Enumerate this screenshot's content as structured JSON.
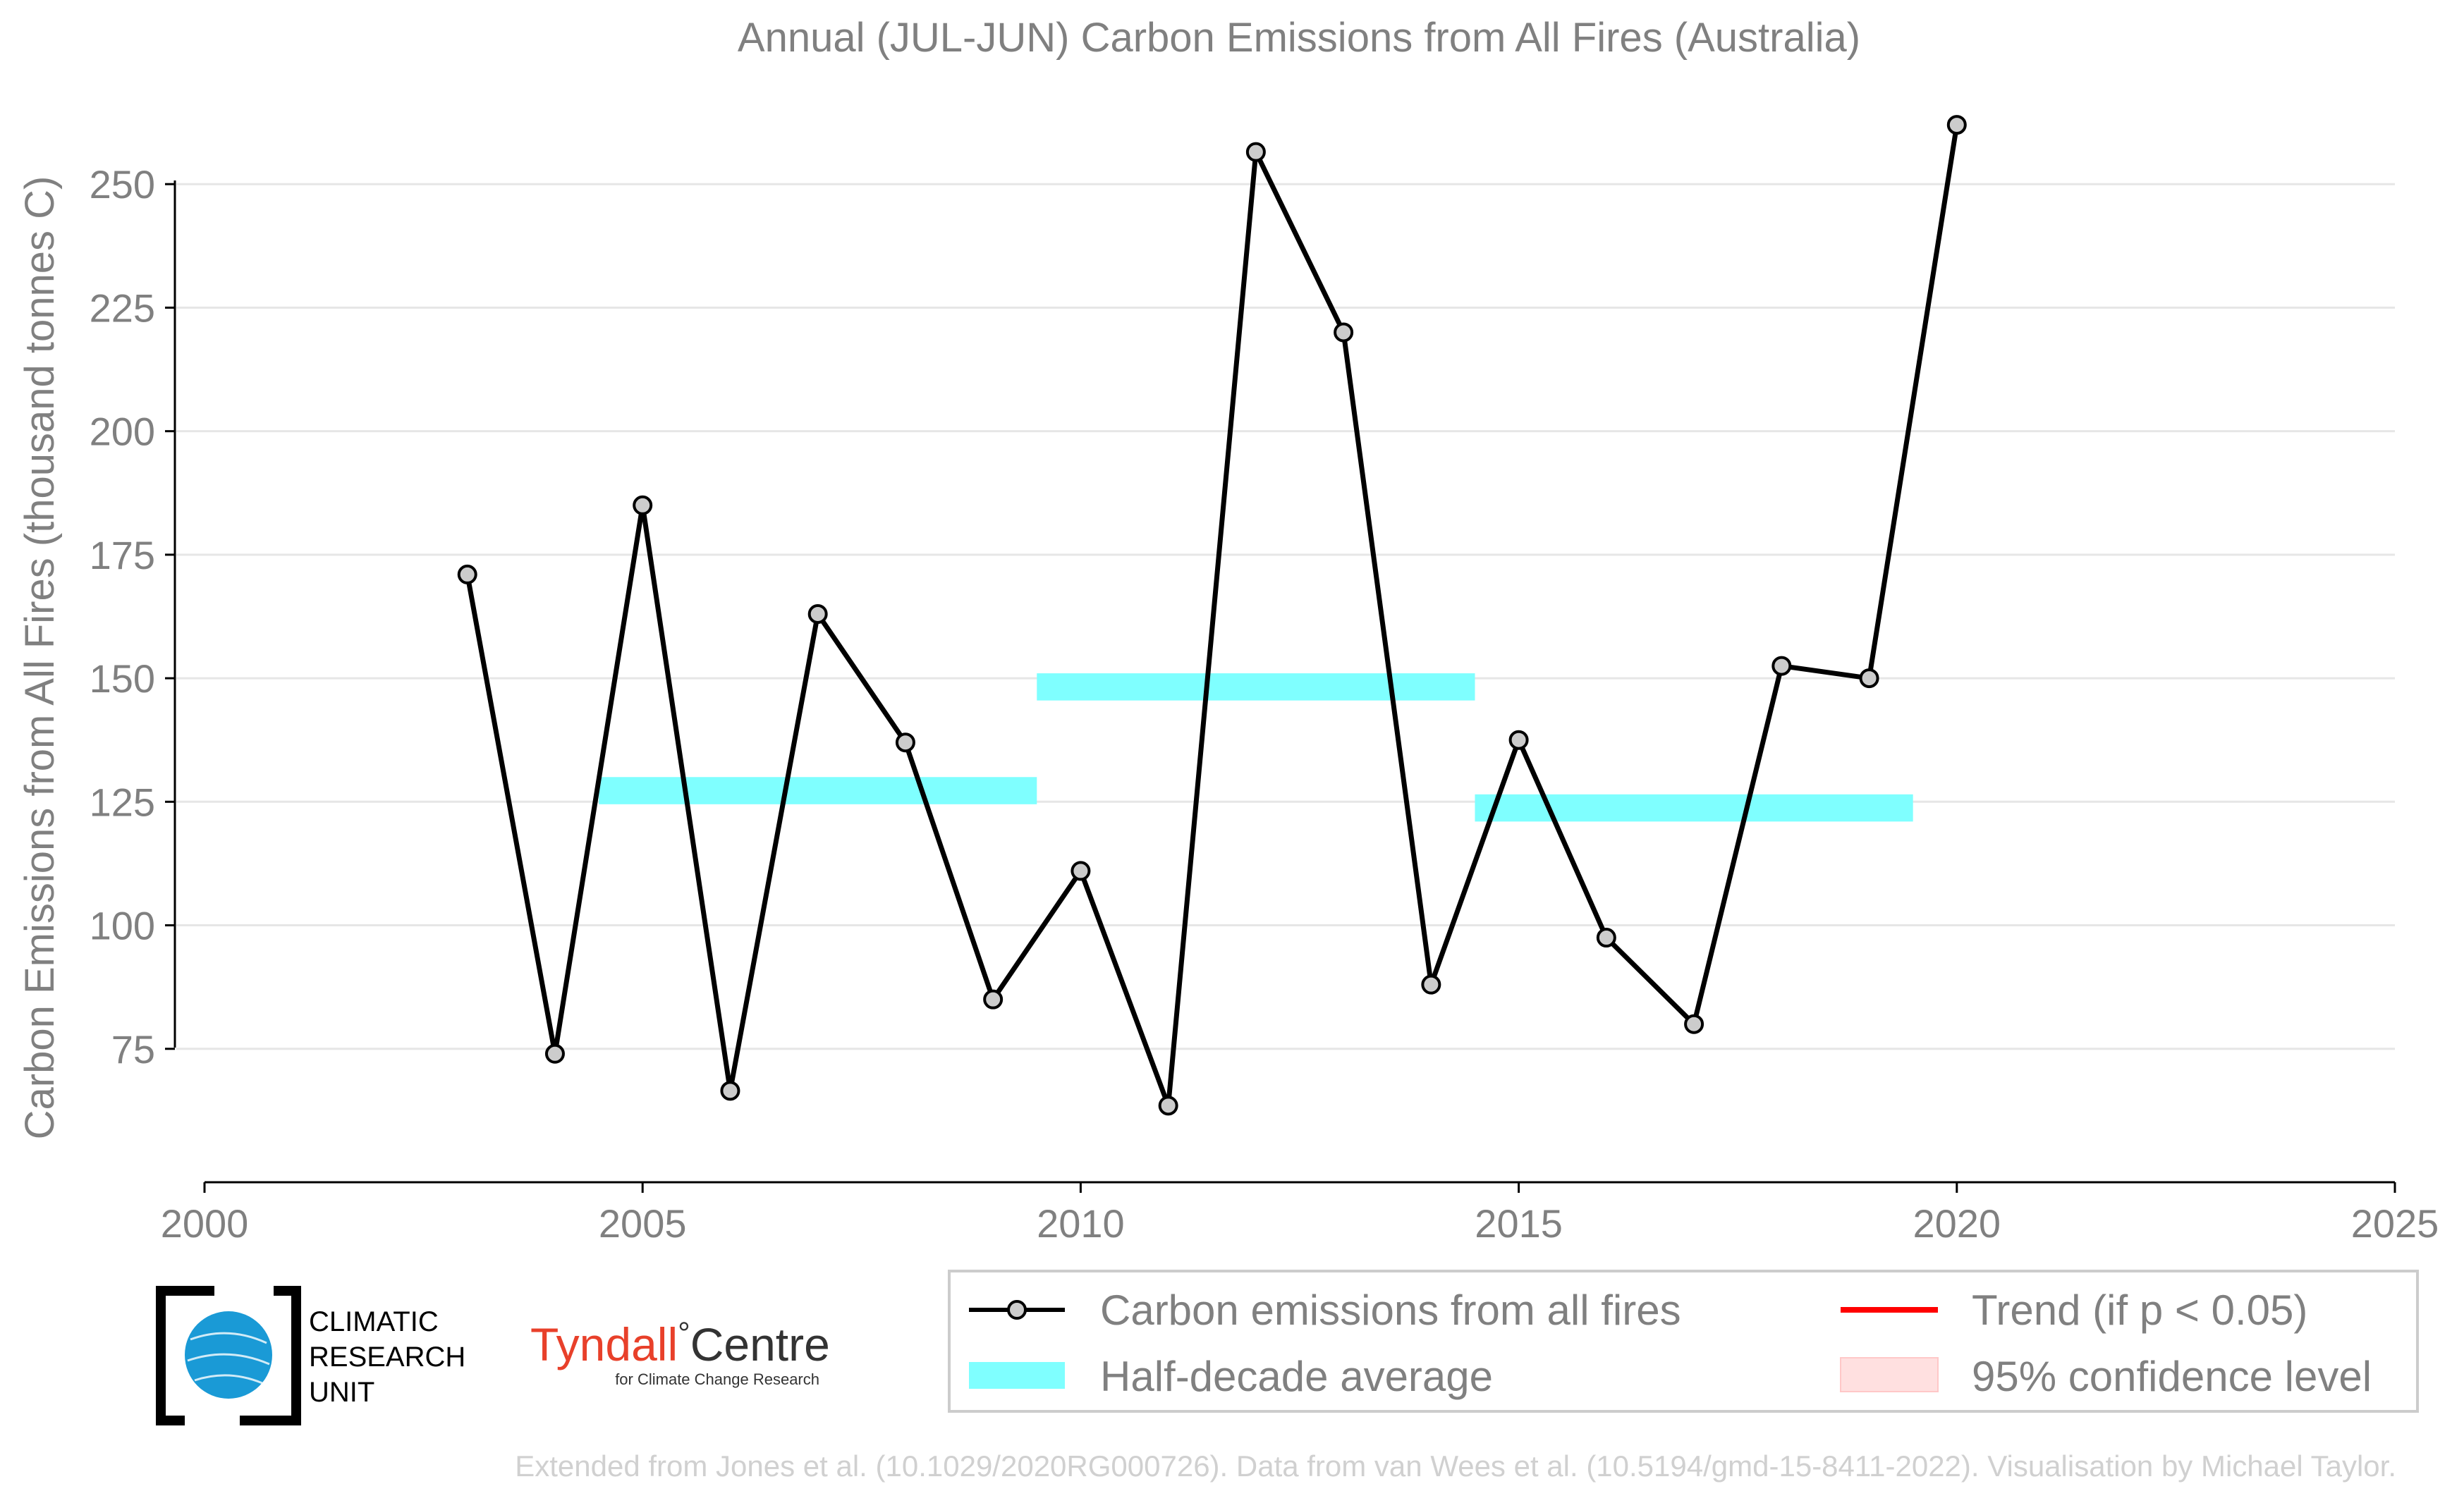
{
  "chart_data": {
    "type": "line",
    "title": "Annual (JUL-JUN) Carbon Emissions from All Fires (Australia)",
    "ylabel": "Carbon Emissions from All Fires (thousand tonnes C)",
    "xlabel": "",
    "xlim": [
      2000,
      2025
    ],
    "ylim": [
      48,
      271
    ],
    "x_ticks": [
      2000,
      2005,
      2010,
      2015,
      2020,
      2025
    ],
    "y_ticks": [
      75,
      100,
      125,
      150,
      175,
      200,
      225,
      250
    ],
    "grid": "horizontal",
    "series": [
      {
        "name": "Carbon emissions from all fires",
        "color": "#000000",
        "marker_fill": "#cccccc",
        "x": [
          2003,
          2004,
          2005,
          2006,
          2007,
          2008,
          2009,
          2010,
          2011,
          2012,
          2013,
          2014,
          2015,
          2016,
          2017,
          2018,
          2019,
          2020
        ],
        "y": [
          171,
          74,
          185,
          66.5,
          163,
          137,
          85,
          111,
          63.5,
          256.5,
          220,
          88,
          137.5,
          97.5,
          80,
          152.5,
          150,
          262
        ]
      }
    ],
    "half_decade_average": {
      "name": "Half-decade average",
      "color": "#7fffff",
      "segments": [
        {
          "x0": 2004.5,
          "x1": 2009.5,
          "y_low": 124.5,
          "y_high": 130
        },
        {
          "x0": 2009.5,
          "x1": 2014.5,
          "y_low": 145.5,
          "y_high": 151
        },
        {
          "x0": 2014.5,
          "x1": 2019.5,
          "y_low": 121,
          "y_high": 126.5
        }
      ]
    },
    "legend": {
      "placement": "bottom-right",
      "items": [
        {
          "label": "Carbon emissions from all fires",
          "kind": "line-marker",
          "color": "#000000"
        },
        {
          "label": "Trend (if p < 0.05)",
          "kind": "line",
          "color": "#ff0000"
        },
        {
          "label": "Half-decade average",
          "kind": "band",
          "color": "#7fffff"
        },
        {
          "label": "95% confidence level",
          "kind": "patch",
          "color": "#ffe0e0"
        }
      ]
    }
  },
  "logos": {
    "cru_lines": [
      "CLIMATIC",
      "RESEARCH",
      "UNIT"
    ],
    "tyndall_word1": "Tyndall",
    "tyndall_degree": "°",
    "tyndall_word2": "Centre",
    "tyndall_sub": "for Climate Change Research"
  },
  "footer": "Extended from Jones et al. (10.1029/2020RG000726). Data from van Wees et al. (10.5194/gmd-15-8411-2022). Visualisation by Michael Taylor."
}
